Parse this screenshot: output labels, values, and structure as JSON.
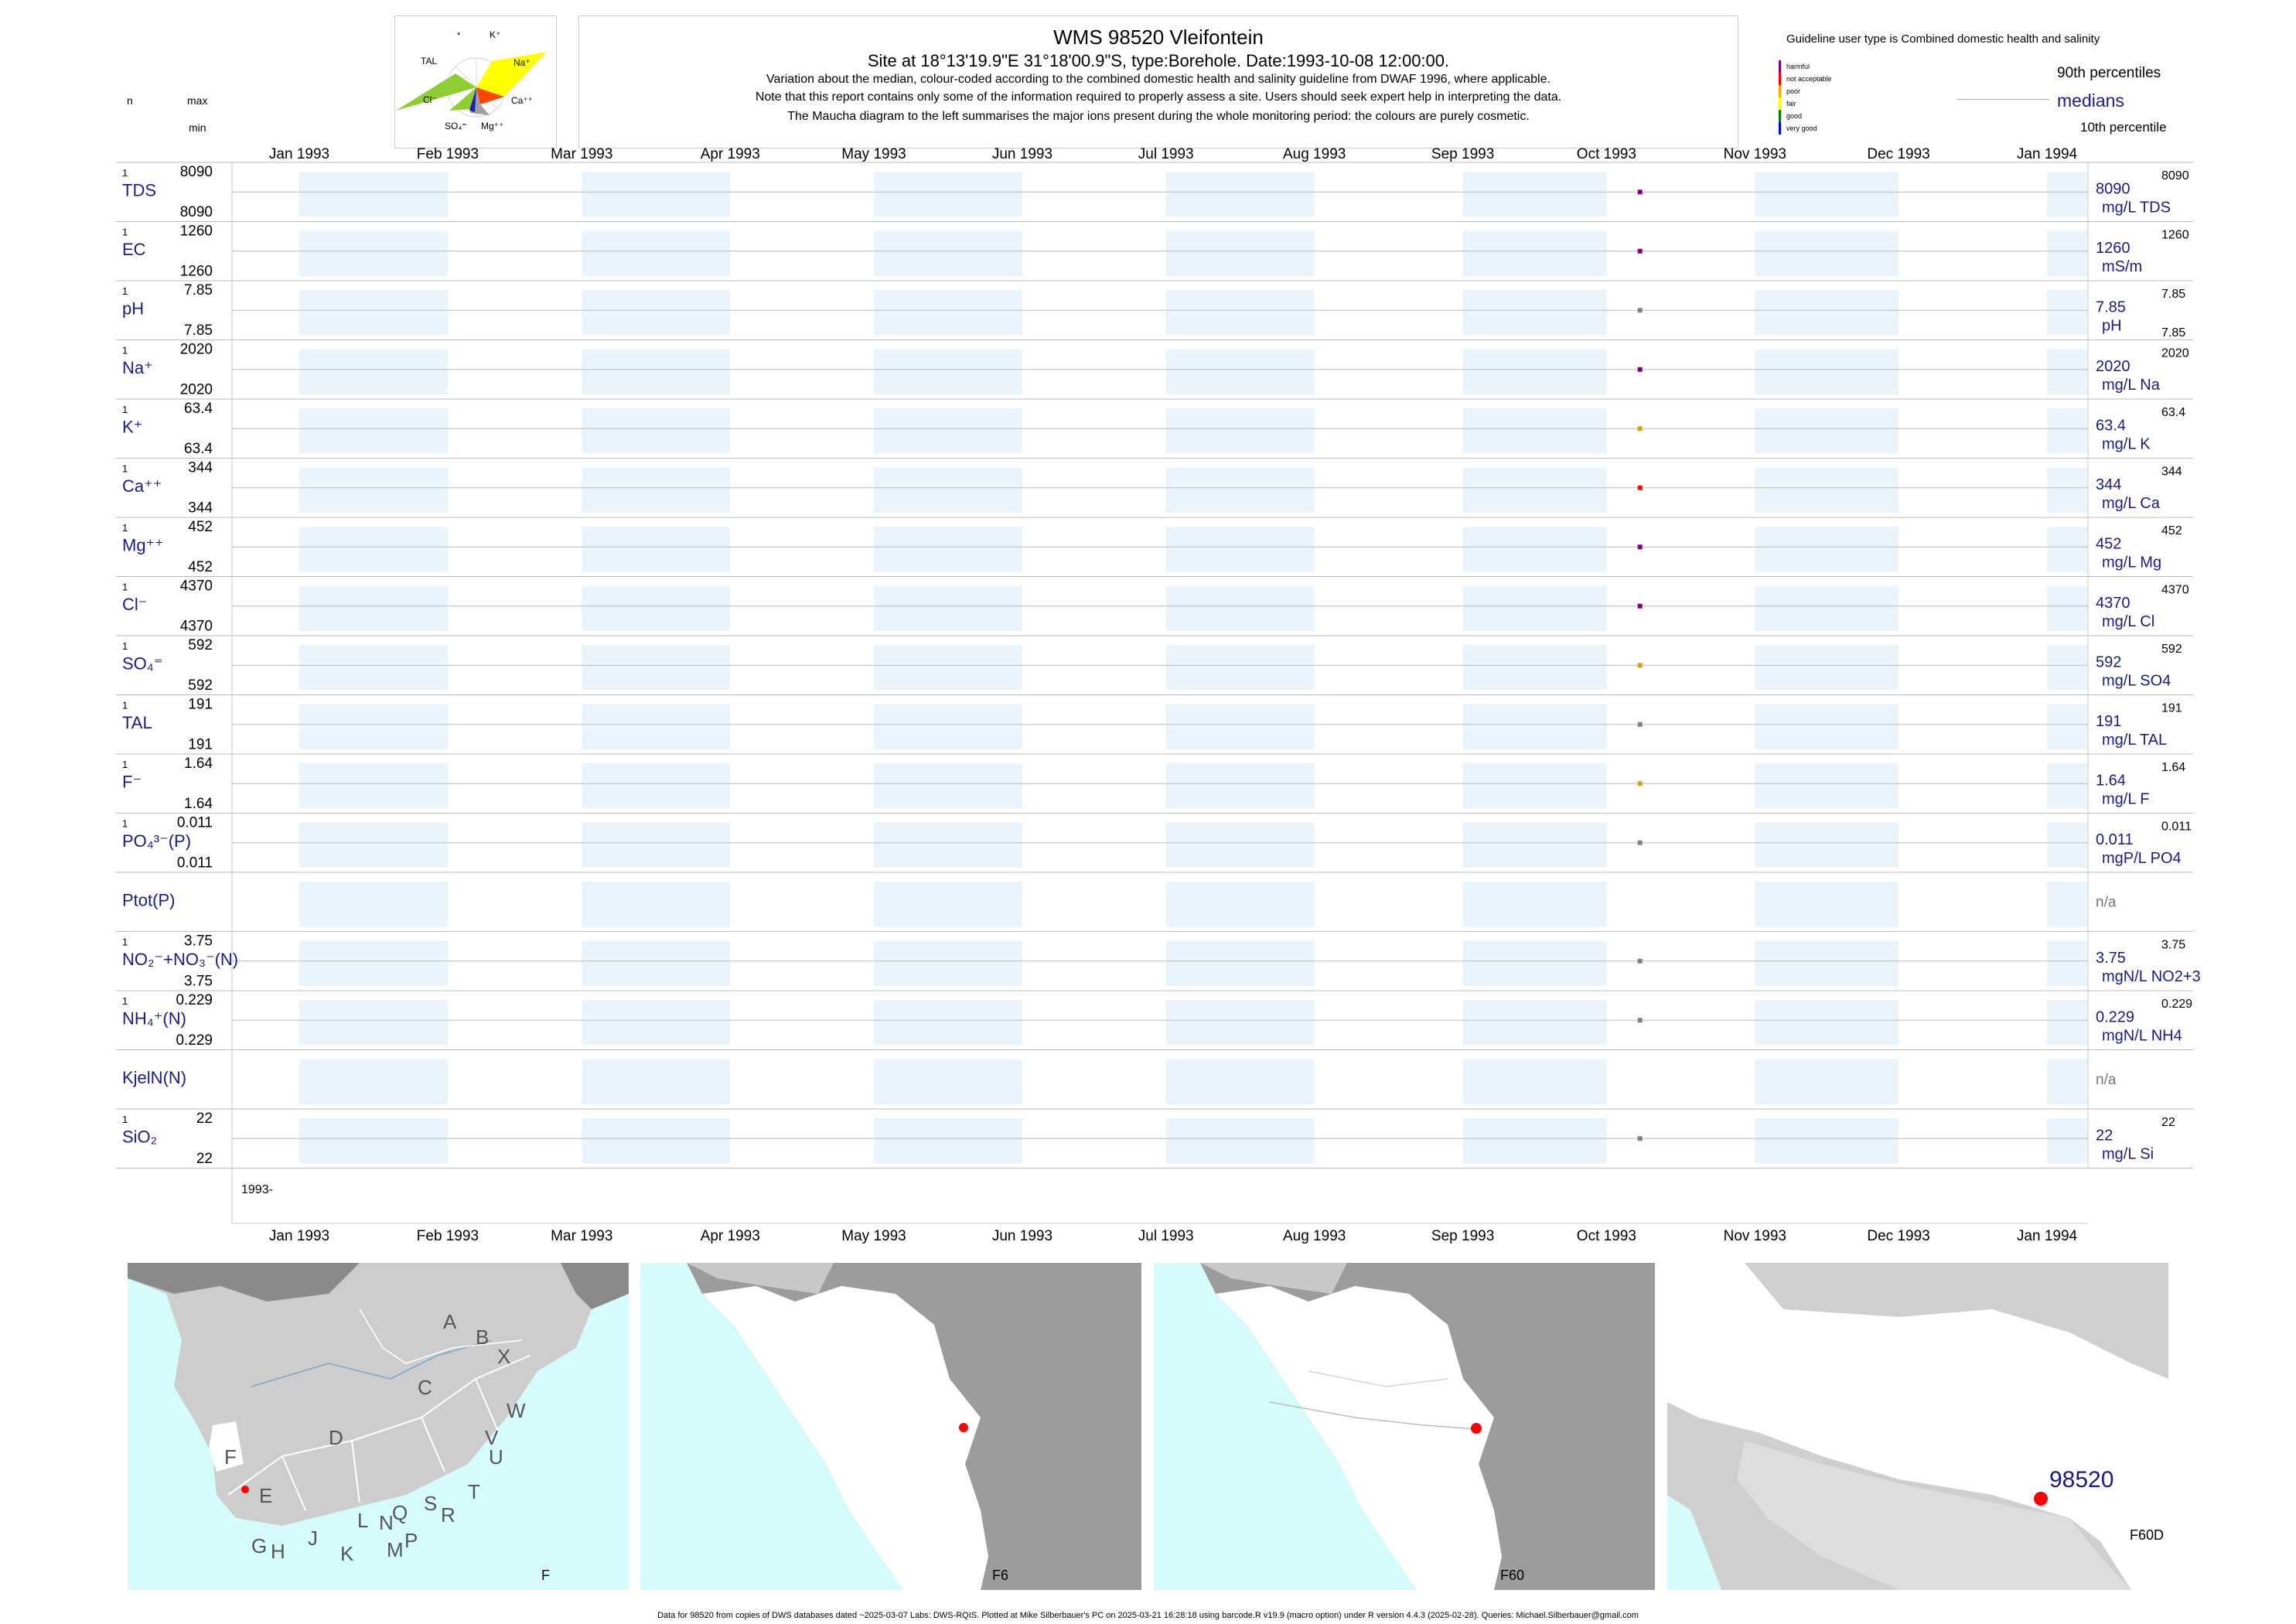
{
  "header": {
    "title": "WMS 98520  Vleifontein",
    "subtitle": "Site at 18°13'19.9\"E 31°18'00.9\"S, type:Borehole. Date:1993-10-08 12:00:00.",
    "note1": "Variation about the median,  colour-coded according to the combined domestic health and salinity guideline from DWAF 1996, where applicable.",
    "note2": "Note that this report contains only some of the information required to properly assess a site. Users should seek expert help in interpreting the data.",
    "note3": "The Maucha diagram to the left summarises the major ions present during the whole monitoring period: the colours are purely cosmetic."
  },
  "left_labels": {
    "n": "n",
    "max": "max",
    "min": "min"
  },
  "maucha": {
    "labels": [
      "*",
      "K⁺",
      "TAL",
      "Na⁺",
      "Cl⁻",
      "Ca⁺⁺",
      "SO₄⁼",
      "Mg⁺⁺"
    ],
    "colors": {
      "Na": "#ffff00",
      "Cl": "#8fce33",
      "K": "#ffff00",
      "Ca": "#ff4500",
      "SO4": "#a0a0a0",
      "Mg": "#1e1ebe"
    }
  },
  "legend": {
    "guideline_text": "Guideline user type is Combined domestic health and salinity",
    "classes": [
      {
        "label": "harmful",
        "color": "#800080"
      },
      {
        "label": "not acceptable",
        "color": "#ff0000"
      },
      {
        "label": "poor",
        "color": "#ffa500"
      },
      {
        "label": "fair",
        "color": "#ffff00"
      },
      {
        "label": "good",
        "color": "#008000"
      },
      {
        "label": "very good",
        "color": "#0000ff"
      }
    ],
    "p90": "90th percentiles",
    "medians": "medians",
    "p10": "10th percentile"
  },
  "chart_data": {
    "type": "scatter",
    "x_ticks": [
      "Jan 1993",
      "Feb 1993",
      "Mar 1993",
      "Apr 1993",
      "May 1993",
      "Jun 1993",
      "Jul 1993",
      "Aug 1993",
      "Sep 1993",
      "Oct 1993",
      "Nov 1993",
      "Dec 1993",
      "Jan 1994"
    ],
    "xlim": [
      "1993-01-01",
      "1994-01-01"
    ],
    "sample_date": "1993-10-08",
    "bottom_year_label": "1993-",
    "rows": [
      {
        "name": "TDS",
        "n": "1",
        "max": "8090",
        "min": "8090",
        "value": "8090",
        "unit": "mg/L TDS",
        "p90": "8090",
        "p10": "",
        "color": "#800080"
      },
      {
        "name": "EC",
        "n": "1",
        "max": "1260",
        "min": "1260",
        "value": "1260",
        "unit": "mS/m",
        "p90": "1260",
        "p10": "",
        "color": "#800080"
      },
      {
        "name": "pH",
        "n": "1",
        "max": "7.85",
        "min": "7.85",
        "value": "7.85",
        "unit": "pH",
        "p90": "7.85",
        "p10": "7.85",
        "color": "#808080"
      },
      {
        "name": "Na⁺",
        "n": "1",
        "max": "2020",
        "min": "2020",
        "value": "2020",
        "unit": "mg/L Na",
        "p90": "2020",
        "p10": "",
        "color": "#800080"
      },
      {
        "name": "K⁺",
        "n": "1",
        "max": "63.4",
        "min": "63.4",
        "value": "63.4",
        "unit": "mg/L K",
        "p90": "63.4",
        "p10": "",
        "color": "#d4a017"
      },
      {
        "name": "Ca⁺⁺",
        "n": "1",
        "max": "344",
        "min": "344",
        "value": "344",
        "unit": "mg/L Ca",
        "p90": "344",
        "p10": "",
        "color": "#ff0000"
      },
      {
        "name": "Mg⁺⁺",
        "n": "1",
        "max": "452",
        "min": "452",
        "value": "452",
        "unit": "mg/L Mg",
        "p90": "452",
        "p10": "",
        "color": "#800080"
      },
      {
        "name": "Cl⁻",
        "n": "1",
        "max": "4370",
        "min": "4370",
        "value": "4370",
        "unit": "mg/L Cl",
        "p90": "4370",
        "p10": "",
        "color": "#800080"
      },
      {
        "name": "SO₄⁼",
        "n": "1",
        "max": "592",
        "min": "592",
        "value": "592",
        "unit": "mg/L SO4",
        "p90": "592",
        "p10": "",
        "color": "#d4a017"
      },
      {
        "name": "TAL",
        "n": "1",
        "max": "191",
        "min": "191",
        "value": "191",
        "unit": "mg/L TAL",
        "p90": "191",
        "p10": "",
        "color": "#808080"
      },
      {
        "name": "F⁻",
        "n": "1",
        "max": "1.64",
        "min": "1.64",
        "value": "1.64",
        "unit": "mg/L F",
        "p90": "1.64",
        "p10": "",
        "color": "#d4a017"
      },
      {
        "name": "PO₄³⁻(P)",
        "n": "1",
        "max": "0.011",
        "min": "0.011",
        "value": "0.011",
        "unit": "mgP/L PO4",
        "p90": "0.011",
        "p10": "",
        "color": "#808080"
      },
      {
        "name": "Ptot(P)",
        "n": "",
        "max": "",
        "min": "",
        "value": "n/a",
        "unit": "",
        "p90": "",
        "p10": "",
        "color": ""
      },
      {
        "name": "NO₂⁻+NO₃⁻(N)",
        "n": "1",
        "max": "3.75",
        "min": "3.75",
        "value": "3.75",
        "unit": "mgN/L NO2+3",
        "p90": "3.75",
        "p10": "",
        "color": "#808080"
      },
      {
        "name": "NH₄⁺(N)",
        "n": "1",
        "max": "0.229",
        "min": "0.229",
        "value": "0.229",
        "unit": "mgN/L NH4",
        "p90": "0.229",
        "p10": "",
        "color": "#808080"
      },
      {
        "name": "KjelN(N)",
        "n": "",
        "max": "",
        "min": "",
        "value": "n/a",
        "unit": "",
        "p90": "",
        "p10": "",
        "color": ""
      },
      {
        "name": "SiO₂",
        "n": "1",
        "max": "22",
        "min": "22",
        "value": "22",
        "unit": "mg/L Si",
        "p90": "22",
        "p10": "",
        "color": "#808080"
      }
    ]
  },
  "maps": {
    "map1_label": "F",
    "map1_regions": [
      "A",
      "B",
      "X",
      "W",
      "C",
      "V",
      "U",
      "D",
      "T",
      "F",
      "E",
      "S",
      "R",
      "Q",
      "N",
      "L",
      "J",
      "G",
      "H",
      "K",
      "M",
      "P"
    ],
    "map2_label": "F6",
    "map3_label": "F60",
    "map4_label": "F60D",
    "map4_site": "98520"
  },
  "footer": "Data for 98520 from copies of DWS databases dated ~2025-03-07 Labs: DWS-RQIS. Plotted at Mike Silberbauer's PC on 2025-03-21 16:28:18 using barcode.R v19.9 (macro option) under R version 4.4.3 (2025-02-28). Queries: Michael.Silberbauer@gmail.com"
}
